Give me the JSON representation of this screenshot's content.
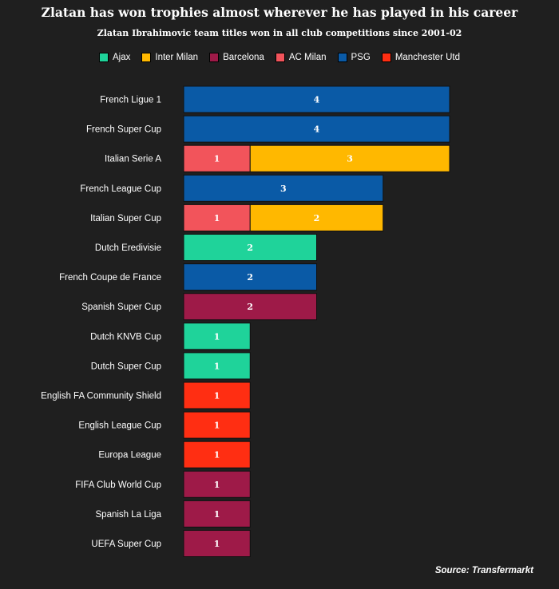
{
  "chart_data": {
    "type": "bar",
    "orientation": "horizontal",
    "stacked": true,
    "title": "Zlatan has won trophies almost wherever he has played in his career",
    "subtitle": "Zlatan Ibrahimovic team titles won in all club competitions since 2001-02",
    "legend_position": "top",
    "grid": false,
    "source": "Source: Transfermarkt",
    "series": [
      {
        "name": "Ajax",
        "color": "#1fd39a"
      },
      {
        "name": "Inter Milan",
        "color": "#ffb800"
      },
      {
        "name": "Barcelona",
        "color": "#9e1a48"
      },
      {
        "name": "AC Milan",
        "color": "#f2545b"
      },
      {
        "name": "PSG",
        "color": "#0a5aa6"
      },
      {
        "name": "Manchester Utd",
        "color": "#ff2e12"
      }
    ],
    "categories": [
      "French Ligue 1",
      "French Super Cup",
      "Italian Serie A",
      "French League Cup",
      "Italian Super Cup",
      "Dutch Eredivisie",
      "French Coupe de France",
      "Spanish Super Cup",
      "Dutch KNVB Cup",
      "Dutch Super Cup",
      "English FA Community Shield",
      "English League Cup",
      "Europa League",
      "FIFA Club World Cup",
      "Spanish La Liga",
      "UEFA Super Cup"
    ],
    "bars": [
      [
        {
          "series": "PSG",
          "value": 4
        }
      ],
      [
        {
          "series": "PSG",
          "value": 4
        }
      ],
      [
        {
          "series": "AC Milan",
          "value": 1
        },
        {
          "series": "Inter Milan",
          "value": 3
        }
      ],
      [
        {
          "series": "PSG",
          "value": 3
        }
      ],
      [
        {
          "series": "AC Milan",
          "value": 1
        },
        {
          "series": "Inter Milan",
          "value": 2
        }
      ],
      [
        {
          "series": "Ajax",
          "value": 2
        }
      ],
      [
        {
          "series": "PSG",
          "value": 2
        }
      ],
      [
        {
          "series": "Barcelona",
          "value": 2
        }
      ],
      [
        {
          "series": "Ajax",
          "value": 1
        }
      ],
      [
        {
          "series": "Ajax",
          "value": 1
        }
      ],
      [
        {
          "series": "Manchester Utd",
          "value": 1
        }
      ],
      [
        {
          "series": "Manchester Utd",
          "value": 1
        }
      ],
      [
        {
          "series": "Manchester Utd",
          "value": 1
        }
      ],
      [
        {
          "series": "Barcelona",
          "value": 1
        }
      ],
      [
        {
          "series": "Barcelona",
          "value": 1
        }
      ],
      [
        {
          "series": "Barcelona",
          "value": 1
        }
      ]
    ],
    "xlim": [
      0,
      4
    ]
  }
}
